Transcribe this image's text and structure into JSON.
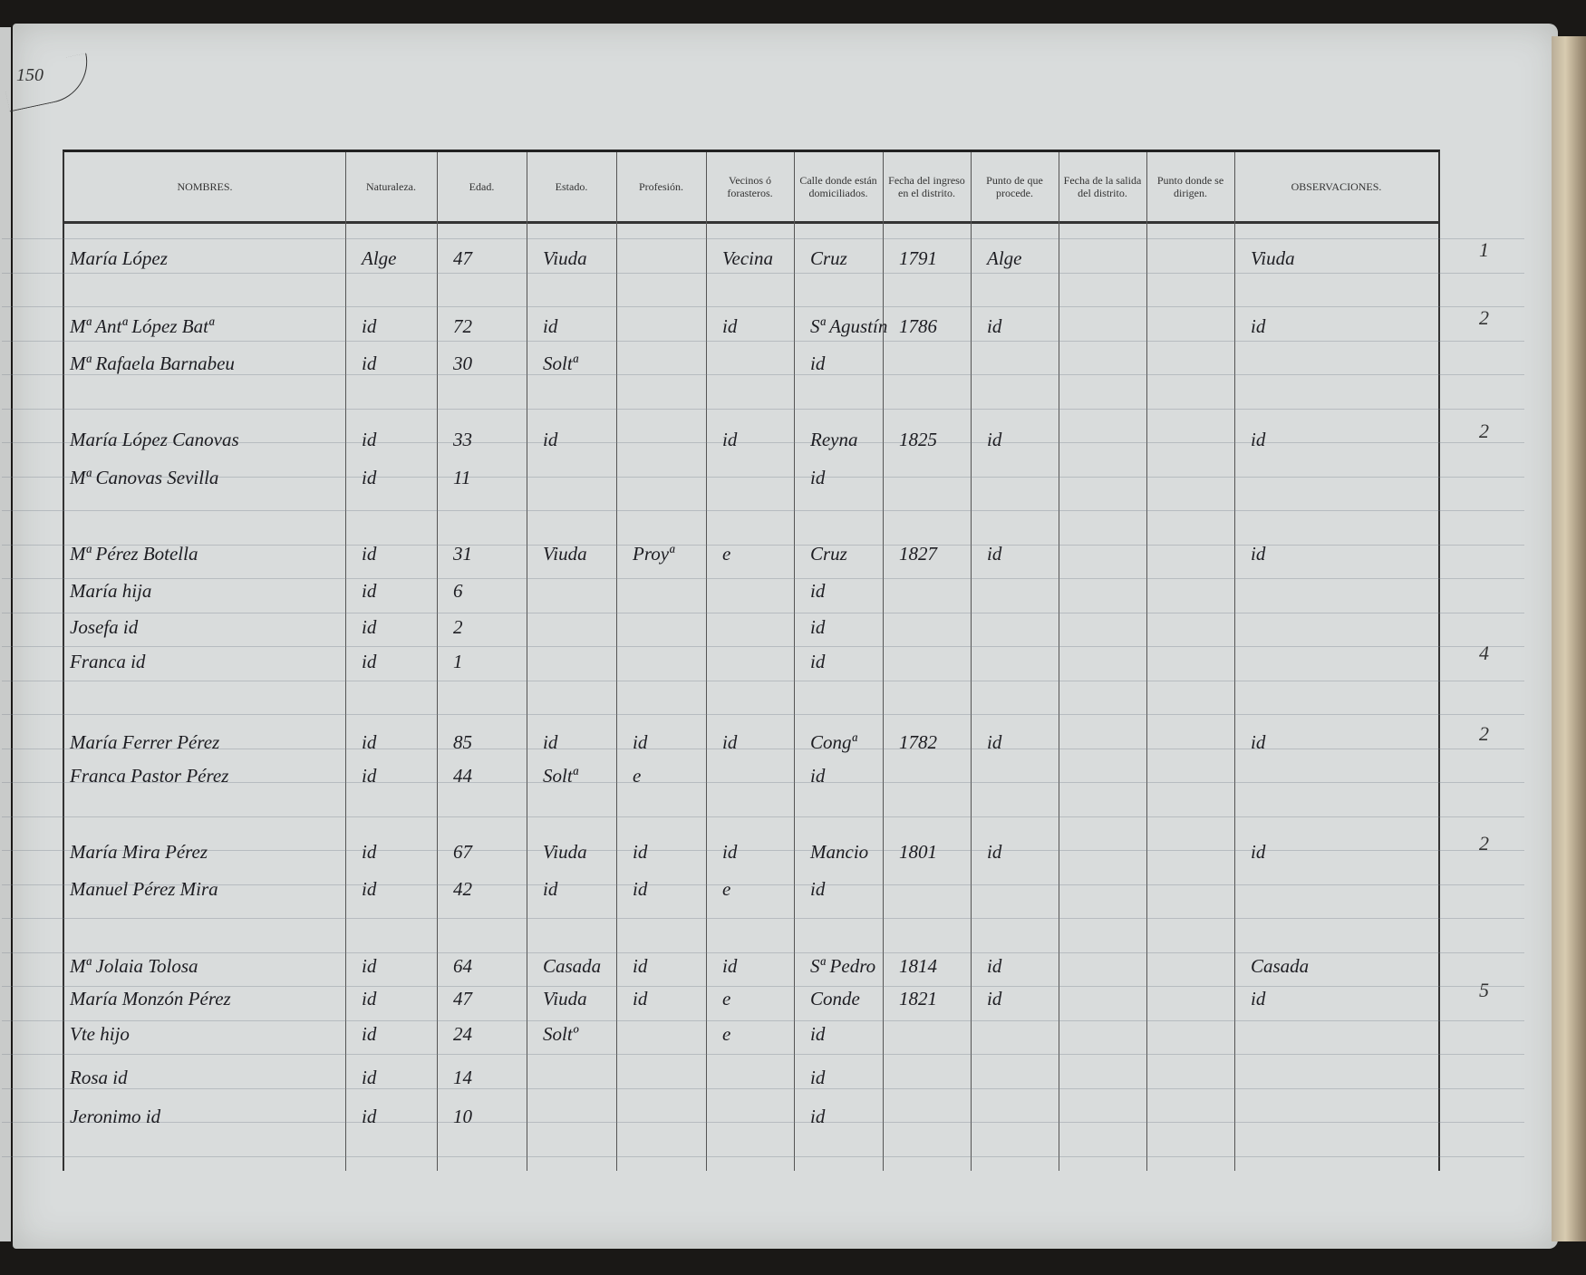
{
  "page_number": "150",
  "headers": [
    "NOMBRES.",
    "Naturaleza.",
    "Edad.",
    "Estado.",
    "Profesión.",
    "Vecinos ó forasteros.",
    "Calle donde están domiciliados.",
    "Fecha del ingreso en el distrito.",
    "Punto de que procede.",
    "Fecha de la salida del distrito.",
    "Punto donde se dirigen.",
    "OBSERVACIONES."
  ],
  "rows": [
    [
      "María López",
      "Alge",
      "47",
      "Viuda",
      "",
      "Vecina",
      "Cruz",
      "1791",
      "Alge",
      "",
      "",
      "Viuda"
    ],
    [
      "Mª Antª López Batª",
      "id",
      "72",
      "id",
      "",
      "id",
      "Sª Agustín",
      "1786",
      "id",
      "",
      "",
      "id"
    ],
    [
      "Mª Rafaela Barnabeu",
      "id",
      "30",
      "Soltª",
      "",
      "",
      "id",
      "",
      "",
      "",
      "",
      ""
    ],
    [
      "María López Canovas",
      "id",
      "33",
      "id",
      "",
      "id",
      "Reyna",
      "1825",
      "id",
      "",
      "",
      "id"
    ],
    [
      "Mª Canovas Sevilla",
      "id",
      "11",
      "",
      "",
      "",
      "id",
      "",
      "",
      "",
      "",
      ""
    ],
    [
      "Mª Pérez Botella",
      "id",
      "31",
      "Viuda",
      "Proyª",
      "e",
      "Cruz",
      "1827",
      "id",
      "",
      "",
      "id"
    ],
    [
      "María hija",
      "id",
      "6",
      "",
      "",
      "",
      "id",
      "",
      "",
      "",
      "",
      ""
    ],
    [
      "Josefa id",
      "id",
      "2",
      "",
      "",
      "",
      "id",
      "",
      "",
      "",
      "",
      ""
    ],
    [
      "Franca id",
      "id",
      "1",
      "",
      "",
      "",
      "id",
      "",
      "",
      "",
      "",
      ""
    ],
    [
      "María Ferrer Pérez",
      "id",
      "85",
      "id",
      "id",
      "id",
      "Congª",
      "1782",
      "id",
      "",
      "",
      "id"
    ],
    [
      "Franca Pastor Pérez",
      "id",
      "44",
      "Soltª",
      "e",
      "",
      "id",
      "",
      "",
      "",
      "",
      ""
    ],
    [
      "María Mira Pérez",
      "id",
      "67",
      "Viuda",
      "id",
      "id",
      "Mancio",
      "1801",
      "id",
      "",
      "",
      "id"
    ],
    [
      "Manuel Pérez Mira",
      "id",
      "42",
      "id",
      "id",
      "e",
      "id",
      "",
      "",
      "",
      "",
      ""
    ],
    [
      "Mª Jolaia Tolosa",
      "id",
      "64",
      "Casada",
      "id",
      "id",
      "Sª Pedro",
      "1814",
      "id",
      "",
      "",
      "Casada"
    ],
    [
      "María Monzón Pérez",
      "id",
      "47",
      "Viuda",
      "id",
      "e",
      "Conde",
      "1821",
      "id",
      "",
      "",
      "id"
    ],
    [
      "Vte hijo",
      "id",
      "24",
      "Soltº",
      "",
      "e",
      "id",
      "",
      "",
      "",
      "",
      ""
    ],
    [
      "Rosa id",
      "id",
      "14",
      "",
      "",
      "",
      "id",
      "",
      "",
      "",
      "",
      ""
    ],
    [
      "Jeronimo id",
      "id",
      "10",
      "",
      "",
      "",
      "id",
      "",
      "",
      "",
      "",
      ""
    ]
  ],
  "margin_counts": [
    "1",
    "2",
    "2",
    "4",
    "2",
    "2",
    "5"
  ]
}
